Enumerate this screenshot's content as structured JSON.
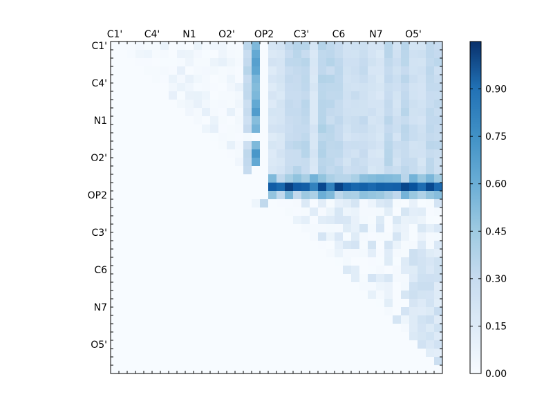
{
  "chart_data": {
    "type": "heatmap",
    "title": "",
    "xlabel": "",
    "ylabel": "",
    "matrix_size": 40,
    "label_positions": [
      0,
      4.5,
      9,
      13.5,
      18,
      22.5,
      27,
      31.5,
      36
    ],
    "x_tick_labels": [
      "C1'",
      "C4'",
      "N1",
      "O2'",
      "OP2",
      "C3'",
      "C6",
      "N7",
      "O5'"
    ],
    "y_tick_labels": [
      "C1'",
      "C4'",
      "N1",
      "O2'",
      "OP2",
      "C3'",
      "C6",
      "N7",
      "O5'"
    ],
    "colormap": "Blues",
    "vmin": 0.0,
    "vmax": 1.05,
    "colorbar_ticks": [
      "0.00",
      "0.15",
      "0.30",
      "0.45",
      "0.60",
      "0.75",
      "0.90"
    ],
    "colorbar_tick_values": [
      0.0,
      0.15,
      0.3,
      0.45,
      0.6,
      0.75,
      0.9
    ],
    "colors": {
      "low": "#f7fbff",
      "mid": "#6baed6",
      "high": "#08306b"
    },
    "strong_row": {
      "index": 17,
      "range": [
        19,
        39
      ],
      "typical_value": 0.8,
      "peak_value": 1.0
    },
    "adjacent_rows": {
      "indices": [
        16,
        18
      ],
      "typical_value": 0.45
    },
    "strong_column": {
      "index": 17,
      "range": [
        0,
        14
      ],
      "typical_value": 0.45
    },
    "upper_band": {
      "rows": [
        0,
        15
      ],
      "cols": [
        19,
        39
      ],
      "typical_value": 0.22
    },
    "lower_band": {
      "rows": [
        19,
        39
      ],
      "cols": [
        20,
        39
      ],
      "typical_value": 0.08
    }
  }
}
